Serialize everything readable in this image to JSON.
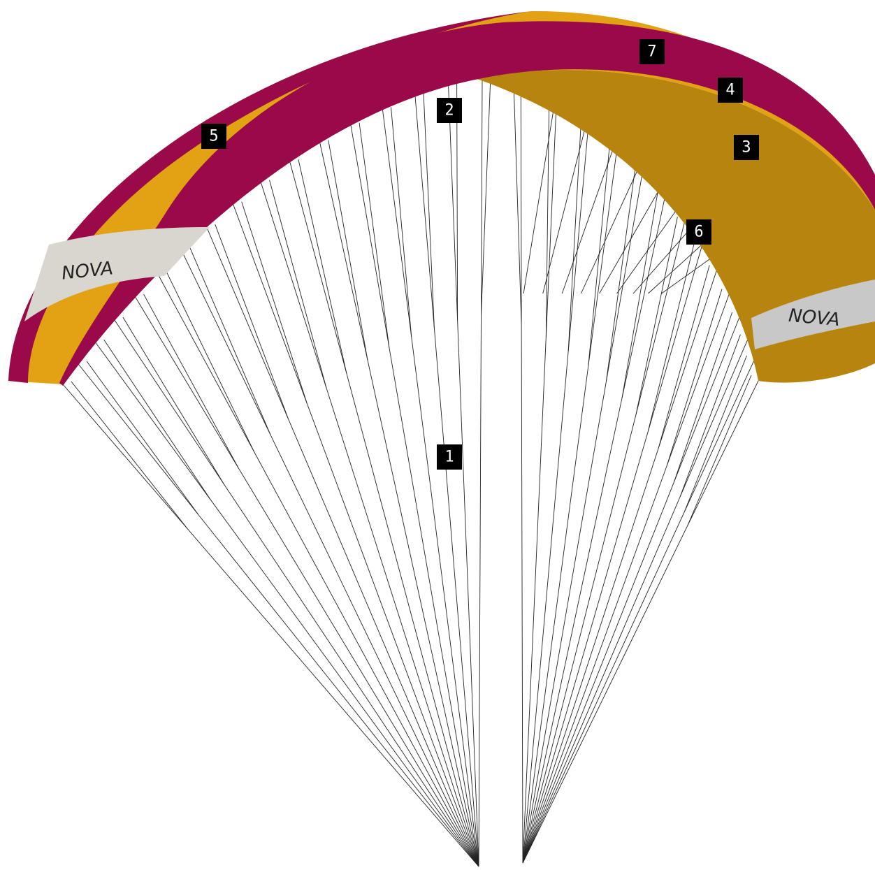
{
  "labels": [
    {
      "text": "1"
    },
    {
      "text": "2"
    },
    {
      "text": "3"
    },
    {
      "text": "4"
    },
    {
      "text": "5"
    },
    {
      "text": "6"
    },
    {
      "text": "7"
    }
  ],
  "brand_marks": [
    "NOVA",
    "NOVA"
  ]
}
